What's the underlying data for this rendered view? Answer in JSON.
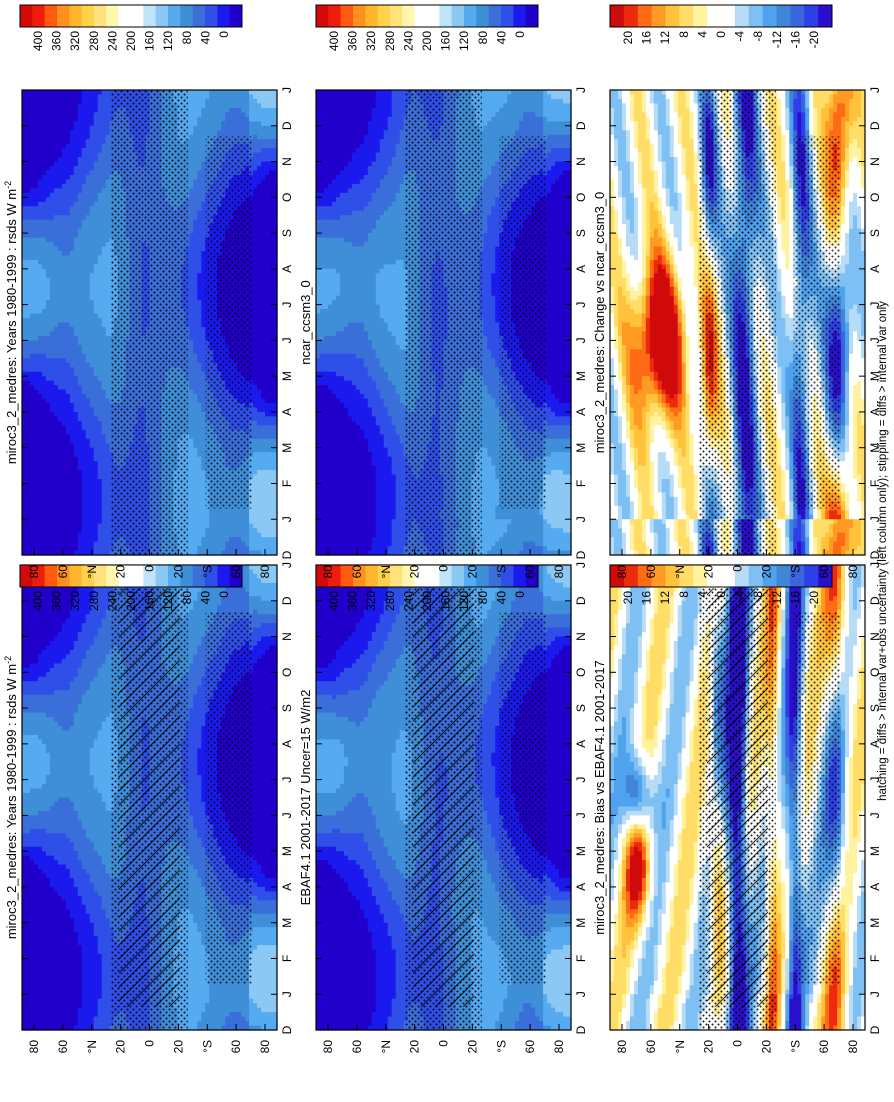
{
  "figure": {
    "footnote": "hatching = diffs > internal var+obs uncertainty (left column only); stippling = diffs > internal var only"
  },
  "chart_data": [
    {
      "type": "heatmap",
      "title": "miroc3_2_medres: Years 1980-1999 : rsds W m",
      "title_sup": "-2",
      "x_ticks": [
        "D",
        "J",
        "F",
        "M",
        "A",
        "M",
        "J",
        "J",
        "A",
        "S",
        "O",
        "N",
        "D",
        "J"
      ],
      "y_ticks": [
        "80",
        "60",
        "°N",
        "20",
        "0",
        "20",
        "°S",
        "60",
        "80"
      ],
      "colorbar": {
        "labels": [
          "400",
          "360",
          "320",
          "280",
          "240",
          "200",
          "160",
          "120",
          "80",
          "40",
          "0"
        ],
        "range": [
          0,
          420
        ],
        "scale": "abs"
      },
      "field": "climatology",
      "variant": 1,
      "hatch": true,
      "stipple": true
    },
    {
      "type": "heatmap",
      "title": "miroc3_2_medres: Years 1980-1999 : rsds W m",
      "title_sup": "-2",
      "x_ticks": [
        "D",
        "J",
        "F",
        "M",
        "A",
        "M",
        "J",
        "J",
        "A",
        "S",
        "O",
        "N",
        "D",
        "J"
      ],
      "y_ticks": [
        "80",
        "60",
        "°N",
        "20",
        "0",
        "20",
        "°S",
        "60",
        "80"
      ],
      "colorbar": {
        "labels": [
          "400",
          "360",
          "320",
          "280",
          "240",
          "200",
          "160",
          "120",
          "80",
          "40",
          "0"
        ],
        "range": [
          0,
          420
        ],
        "scale": "abs"
      },
      "field": "climatology",
      "variant": 1,
      "hatch": false,
      "stipple": true
    },
    {
      "type": "heatmap",
      "title": "EBAF4.1 2001-2017 Uncer=15 W/m2",
      "title_sup": "",
      "x_ticks": [
        "D",
        "J",
        "F",
        "M",
        "A",
        "M",
        "J",
        "J",
        "A",
        "S",
        "O",
        "N",
        "D",
        "J"
      ],
      "y_ticks": [
        "80",
        "60",
        "°N",
        "20",
        "0",
        "20",
        "°S",
        "60",
        "80"
      ],
      "colorbar": {
        "labels": [
          "400",
          "360",
          "320",
          "280",
          "240",
          "200",
          "160",
          "120",
          "80",
          "40",
          "0"
        ],
        "range": [
          0,
          420
        ],
        "scale": "abs"
      },
      "field": "climatology",
      "variant": 2,
      "hatch": true,
      "stipple": true
    },
    {
      "type": "heatmap",
      "title": "ncar_ccsm3_0",
      "title_sup": "",
      "x_ticks": [
        "D",
        "J",
        "F",
        "M",
        "A",
        "M",
        "J",
        "J",
        "A",
        "S",
        "O",
        "N",
        "D",
        "J"
      ],
      "y_ticks": [
        "80",
        "60",
        "°N",
        "20",
        "0",
        "20",
        "°S",
        "60",
        "80"
      ],
      "colorbar": {
        "labels": [
          "400",
          "360",
          "320",
          "280",
          "240",
          "200",
          "160",
          "120",
          "80",
          "40",
          "0"
        ],
        "range": [
          0,
          420
        ],
        "scale": "abs"
      },
      "field": "climatology",
      "variant": 3,
      "hatch": false,
      "stipple": true
    },
    {
      "type": "heatmap",
      "title": "miroc3_2_medres: Bias vs EBAF4.1 2001-2017",
      "title_sup": "",
      "x_ticks": [
        "D",
        "J",
        "F",
        "M",
        "A",
        "M",
        "J",
        "J",
        "A",
        "S",
        "O",
        "N",
        "D",
        "J"
      ],
      "y_ticks": [
        "80",
        "60",
        "°N",
        "20",
        "0",
        "20",
        "°S",
        "60",
        "80"
      ],
      "colorbar": {
        "labels": [
          "20",
          "16",
          "12",
          "8",
          "4",
          "0",
          "-4",
          "-8",
          "-12",
          "-16",
          "-20"
        ],
        "range": [
          -22,
          22
        ],
        "scale": "diff"
      },
      "field": "bias",
      "variant": 1,
      "hatch": true,
      "stipple": true
    },
    {
      "type": "heatmap",
      "title": "miroc3_2_medres: Change vs ncar_ccsm3_0",
      "title_sup": "",
      "x_ticks": [
        "D",
        "J",
        "F",
        "M",
        "A",
        "M",
        "J",
        "J",
        "A",
        "S",
        "O",
        "N",
        "D",
        "J"
      ],
      "y_ticks": [
        "80",
        "60",
        "°N",
        "20",
        "0",
        "20",
        "°S",
        "60",
        "80"
      ],
      "colorbar": {
        "labels": [
          "20",
          "16",
          "12",
          "8",
          "4",
          "0",
          "-4",
          "-8",
          "-12",
          "-16",
          "-20"
        ],
        "range": [
          -22,
          22
        ],
        "scale": "diff"
      },
      "field": "change",
      "variant": 2,
      "hatch": false,
      "stipple": true
    }
  ]
}
